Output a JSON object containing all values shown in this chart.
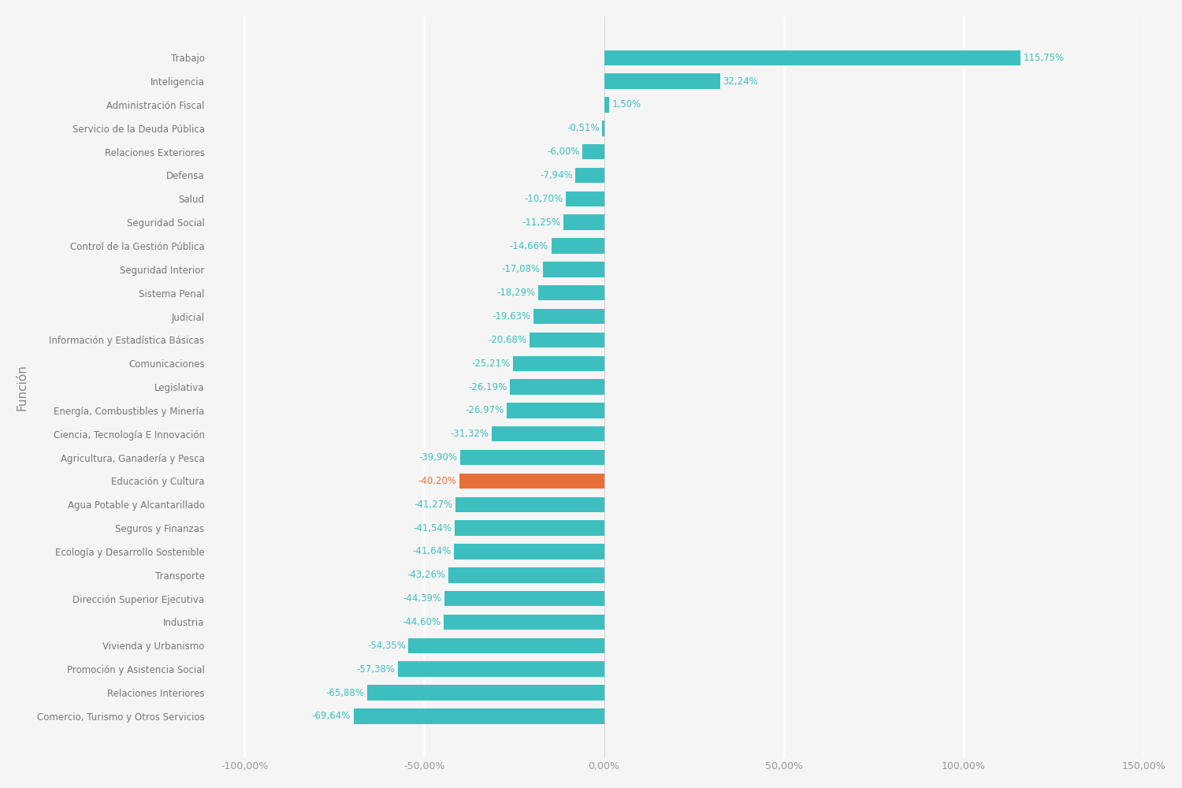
{
  "categories": [
    "Trabajo",
    "Inteligencia",
    "Administración Fiscal",
    "Servicio de la Deuda Pública",
    "Relaciones Exteriores",
    "Defensa",
    "Salud",
    "Seguridad Social",
    "Control de la Gestión Pública",
    "Seguridad Interior",
    "Sistema Penal",
    "Judicial",
    "Información y Estadística Básicas",
    "Comunicaciones",
    "Legislativa",
    "Energía, Combustibles y Minería",
    "Ciencia, Tecnología E Innovación",
    "Agricultura, Ganadería y Pesca",
    "Educación y Cultura",
    "Agua Potable y Alcantarillado",
    "Seguros y Finanzas",
    "Ecología y Desarrollo Sostenible",
    "Transporte",
    "Dirección Superior Ejecutiva",
    "Industria",
    "Vivienda y Urbanismo",
    "Promoción y Asistencia Social",
    "Relaciones Interiores",
    "Comercio, Turismo y Otros Servicios"
  ],
  "values": [
    115.75,
    32.24,
    1.5,
    -0.51,
    -6.0,
    -7.94,
    -10.7,
    -11.25,
    -14.66,
    -17.08,
    -18.29,
    -19.63,
    -20.68,
    -25.21,
    -26.19,
    -26.97,
    -31.32,
    -39.9,
    -40.2,
    -41.27,
    -41.54,
    -41.64,
    -43.26,
    -44.39,
    -44.6,
    -54.35,
    -57.38,
    -65.88,
    -69.64
  ],
  "label_values": [
    "115,75%",
    "32,24%",
    "1,50%",
    "-0,51%",
    "-6,00%",
    "-7,94%",
    "-10,70%",
    "-11,25%",
    "-14,66%",
    "-17,08%",
    "-18,29%",
    "-19,63%",
    "-20,68%",
    "-25,21%",
    "-26,19%",
    "-26,97%",
    "-31,32%",
    "-39,90%",
    "-40,20%",
    "-41,27%",
    "-41,54%",
    "-41,64%",
    "-43,26%",
    "-44,39%",
    "-44,60%",
    "-54,35%",
    "-57,38%",
    "-65,88%",
    "-69,64%"
  ],
  "highlight_index": 18,
  "bar_color_default": "#3dbfbf",
  "bar_color_highlight": "#e87038",
  "label_color_default": "#3dbfbf",
  "label_color_highlight": "#e87038",
  "background_color": "#f5f5f5",
  "ylabel": "Función",
  "xlim": [
    -110,
    150
  ],
  "xticks": [
    -100,
    -50,
    0,
    50,
    100,
    150
  ],
  "xtick_labels": [
    "-100,00%",
    "-50,00%",
    "0,00%",
    "50,00%",
    "100,00%",
    "150,00%"
  ],
  "grid_color": "#ffffff",
  "bar_height": 0.65,
  "label_fontsize": 8.5,
  "tick_fontsize": 9,
  "ylabel_fontsize": 11
}
